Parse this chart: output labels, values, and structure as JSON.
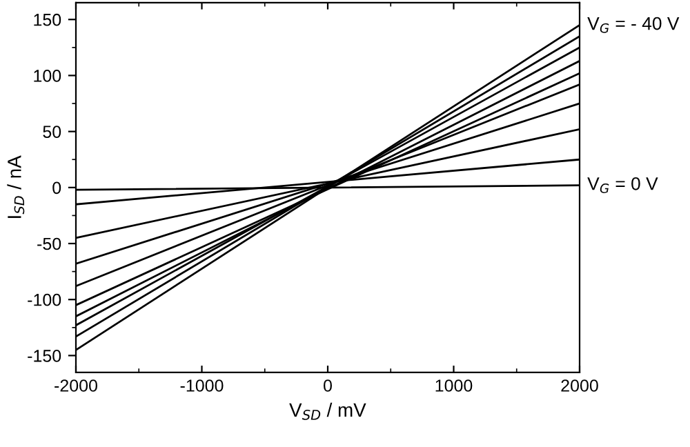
{
  "chart_data": {
    "type": "line",
    "xlabel": "V$_{SD}$ / mV",
    "ylabel": "I$_{SD}$ / nA",
    "x": [
      -2000,
      2000
    ],
    "series": [
      {
        "color": "#000000",
        "values": [
          -2,
          2
        ]
      },
      {
        "color": "#000000",
        "values": [
          -15,
          25
        ]
      },
      {
        "color": "#000000",
        "values": [
          -45,
          52
        ]
      },
      {
        "color": "#000000",
        "values": [
          -68,
          75
        ]
      },
      {
        "color": "#000000",
        "values": [
          -88,
          92
        ]
      },
      {
        "color": "#000000",
        "values": [
          -105,
          102
        ]
      },
      {
        "color": "#000000",
        "values": [
          -115,
          113
        ]
      },
      {
        "color": "#000000",
        "values": [
          -123,
          125
        ]
      },
      {
        "color": "#000000",
        "values": [
          -133,
          135
        ]
      },
      {
        "color": "#000000",
        "values": [
          -145,
          145
        ]
      }
    ],
    "annotations": [
      {
        "text": "V$_{G}$ = - 40 V",
        "x": 2000,
        "y": 145
      },
      {
        "text": "V$_{G}$ = 0 V",
        "x": 2000,
        "y": 2
      }
    ],
    "xlim": [
      -2000,
      2000
    ],
    "xticks": [
      -2000,
      -1000,
      0,
      1000,
      2000
    ],
    "ylim": [
      -165,
      165
    ],
    "yticks": [
      -150,
      -100,
      -50,
      0,
      50,
      100,
      150
    ],
    "grid": false,
    "legend": false,
    "marker": "none",
    "line_style": "solid"
  }
}
